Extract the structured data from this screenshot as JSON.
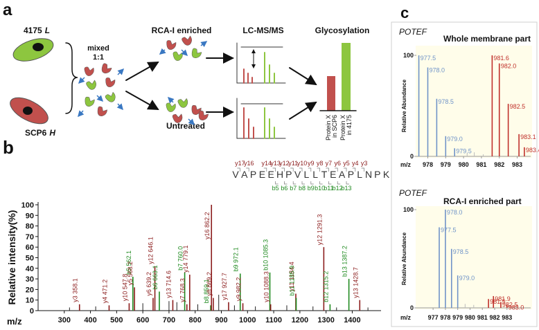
{
  "panel_a": {
    "label": "a",
    "cell_1": {
      "name": "4175",
      "tag": "L"
    },
    "cell_2": {
      "name": "SCP6",
      "tag": "H"
    },
    "mixed": [
      "mixed",
      "1:1"
    ],
    "enriched": "RCA-I enriched",
    "untreated": "Untreated",
    "method": "LC-MS/MS",
    "result": "Glycosylation",
    "bars": [
      [
        "Protein X",
        "in SCP6"
      ],
      [
        "Protein X",
        "in 4175"
      ]
    ]
  },
  "panel_b": {
    "label": "b",
    "sequence": [
      "V",
      "A",
      "P",
      "E",
      "E",
      "H",
      "P",
      "V",
      "L",
      "L",
      "T",
      "E",
      "A",
      "P",
      "L",
      "N",
      "P",
      "K"
    ],
    "y_ions": [
      "y17",
      "y16",
      "y14",
      "y13",
      "y12",
      "y11",
      "y10",
      "y9",
      "y8",
      "y7",
      "y6",
      "y5",
      "y4",
      "y3"
    ],
    "b_ions": [
      "b5",
      "b6",
      "b7",
      "b8",
      "b9",
      "b10",
      "b11",
      "b12",
      "b13"
    ],
    "ion_colors": {
      "y": "#8b1c1c",
      "b": "#1f8a1f"
    },
    "ylabel": "Relative intensity(%)",
    "xlabel": "m/z",
    "xlim": [
      200,
      1510
    ],
    "ylim": [
      0,
      100
    ],
    "xticks": [
      300,
      400,
      500,
      600,
      700,
      800,
      900,
      1000,
      1100,
      1200,
      1300,
      1400
    ],
    "yticks": [
      0,
      10,
      20,
      30,
      40,
      50,
      60,
      70,
      80,
      90,
      100
    ],
    "peaks": [
      {
        "mz": 358.1,
        "intensity": 6,
        "label": "y3 358.1",
        "color": "#8b1c1c"
      },
      {
        "mz": 471.2,
        "intensity": 5,
        "label": "y4 471.2",
        "color": "#8b1c1c"
      },
      {
        "mz": 547.8,
        "intensity": 7,
        "label": "y10 547.8",
        "color": "#8b1c1c"
      },
      {
        "mz": 562.1,
        "intensity": 32,
        "label": "b5 562.1",
        "color": "#1f8a1f"
      },
      {
        "mz": 568.2,
        "intensity": 22,
        "label": "y5 568.2",
        "color": "#8b1c1c"
      },
      {
        "mz": 639.2,
        "intensity": 12,
        "label": "y6 639.2",
        "color": "#8b1c1c"
      },
      {
        "mz": 646.1,
        "intensity": 42,
        "label": "y12 646.1",
        "color": "#8b1c1c"
      },
      {
        "mz": 663.1,
        "intensity": 18,
        "label": "b6 663.1",
        "color": "#1f8a1f"
      },
      {
        "mz": 714.6,
        "intensity": 10,
        "label": "y13 714.6",
        "color": "#8b1c1c"
      },
      {
        "mz": 760.0,
        "intensity": 36,
        "label": "b7 760.0",
        "color": "#1f8a1f"
      },
      {
        "mz": 768.3,
        "intensity": 6,
        "label": "y7 768.3",
        "color": "#8b1c1c"
      },
      {
        "mz": 779.1,
        "intensity": 34,
        "label": "y14 779.1",
        "color": "#8b1c1c"
      },
      {
        "mz": 859.1,
        "intensity": 5,
        "label": "b8 859.1",
        "color": "#1f8a1f"
      },
      {
        "mz": 862.2,
        "intensity": 100,
        "label": "y16 862.2",
        "color": "#8b1c1c"
      },
      {
        "mz": 869.2,
        "intensity": 12,
        "label": "y8 869.2",
        "color": "#8b1c1c"
      },
      {
        "mz": 927.7,
        "intensity": 8,
        "label": "y17 927.7",
        "color": "#8b1c1c"
      },
      {
        "mz": 972.1,
        "intensity": 35,
        "label": "b9 972.1",
        "color": "#1f8a1f"
      },
      {
        "mz": 982.2,
        "intensity": 7,
        "label": "y9 982.2",
        "color": "#8b1c1c"
      },
      {
        "mz": 1085.3,
        "intensity": 36,
        "label": "b10 1085.3",
        "color": "#1f8a1f"
      },
      {
        "mz": 1088.3,
        "intensity": 6,
        "label": "y10 1088.3",
        "color": "#8b1c1c"
      },
      {
        "mz": 1184.4,
        "intensity": 16,
        "label": "y11 1184.4",
        "color": "#8b1c1c"
      },
      {
        "mz": 1185.9,
        "intensity": 12,
        "label": "b11 1185.9",
        "color": "#1f8a1f"
      },
      {
        "mz": 1291.3,
        "intensity": 60,
        "label": "y12 1291.3",
        "color": "#8b1c1c"
      },
      {
        "mz": 1315.2,
        "intensity": 6,
        "label": "b12 1315.2",
        "color": "#1f8a1f"
      },
      {
        "mz": 1387.2,
        "intensity": 30,
        "label": "b13 1387.2",
        "color": "#1f8a1f"
      },
      {
        "mz": 1428.7,
        "intensity": 10,
        "label": "y13 1428.7",
        "color": "#8b1c1c"
      }
    ],
    "other_peaks": {
      "color": "#222222",
      "mz": [
        320,
        420,
        600,
        700,
        730,
        810,
        890,
        950,
        1030,
        1150,
        1250,
        1340,
        1460
      ],
      "intensity": [
        3,
        4,
        7,
        9,
        8,
        6,
        15,
        5,
        4,
        5,
        4,
        3,
        3
      ]
    }
  },
  "panel_c": {
    "label": "c",
    "spectra": [
      {
        "sample": "POTEF",
        "title": "Whole membrane part",
        "ylabel": "Relative Abundance",
        "xlabel": "m/z",
        "xlim": [
          977.4,
          983.6
        ],
        "ylim": [
          0,
          100
        ],
        "xticks": [
          978,
          979,
          980,
          981,
          982,
          983
        ],
        "yticks": [
          0,
          100
        ],
        "peaks": {
          "mz": [
            977.5,
            978.0,
            978.5,
            979.0,
            979.5,
            981.6,
            982.0,
            982.5,
            983.1,
            983.4
          ],
          "intensity": [
            100,
            88,
            57,
            20,
            8,
            100,
            92,
            52,
            22,
            9
          ],
          "labels": [
            "977.5",
            "978.0",
            "978.5",
            "979.0",
            "979.5",
            "981.6",
            "982.0",
            "982.5",
            "983.1",
            "983.4"
          ],
          "colors": [
            "#6f93c8",
            "#6f93c8",
            "#6f93c8",
            "#6f93c8",
            "#6f93c8",
            "#c0302b",
            "#c0302b",
            "#c0302b",
            "#c0302b",
            "#c0302b"
          ]
        },
        "minor_peaks": {
          "color": "#bbbbbb",
          "mz": [
            980.2,
            980.6,
            981.1
          ],
          "intensity": [
            3,
            4,
            2
          ]
        }
      },
      {
        "sample": "POTEF",
        "title": "RCA-I enriched part",
        "ylabel": "Relative Abundance",
        "xlabel": "m/z",
        "xlim": [
          975.7,
          984.7
        ],
        "ylim": [
          0,
          100
        ],
        "xticks": [
          977,
          978,
          979,
          980,
          981,
          982,
          983
        ],
        "yticks": [
          0,
          100
        ],
        "peaks": {
          "mz": [
            977.5,
            978.0,
            978.5,
            979.0,
            981.5,
            981.9,
            982.5,
            983.0
          ],
          "intensity": [
            82,
            100,
            60,
            33,
            9,
            12,
            6,
            3
          ],
          "labels": [
            "977.5",
            "978.0",
            "978.5",
            "979.0",
            "981.5",
            "981.9",
            "982.5",
            "983.0"
          ],
          "colors": [
            "#6f93c8",
            "#6f93c8",
            "#6f93c8",
            "#6f93c8",
            "#c0302b",
            "#c0302b",
            "#c0302b",
            "#c0302b"
          ]
        },
        "minor_peaks": {
          "color": "#bbbbbb",
          "mz": [
            979.6,
            980.3,
            983.8
          ],
          "intensity": [
            4,
            3,
            2
          ]
        }
      }
    ]
  }
}
